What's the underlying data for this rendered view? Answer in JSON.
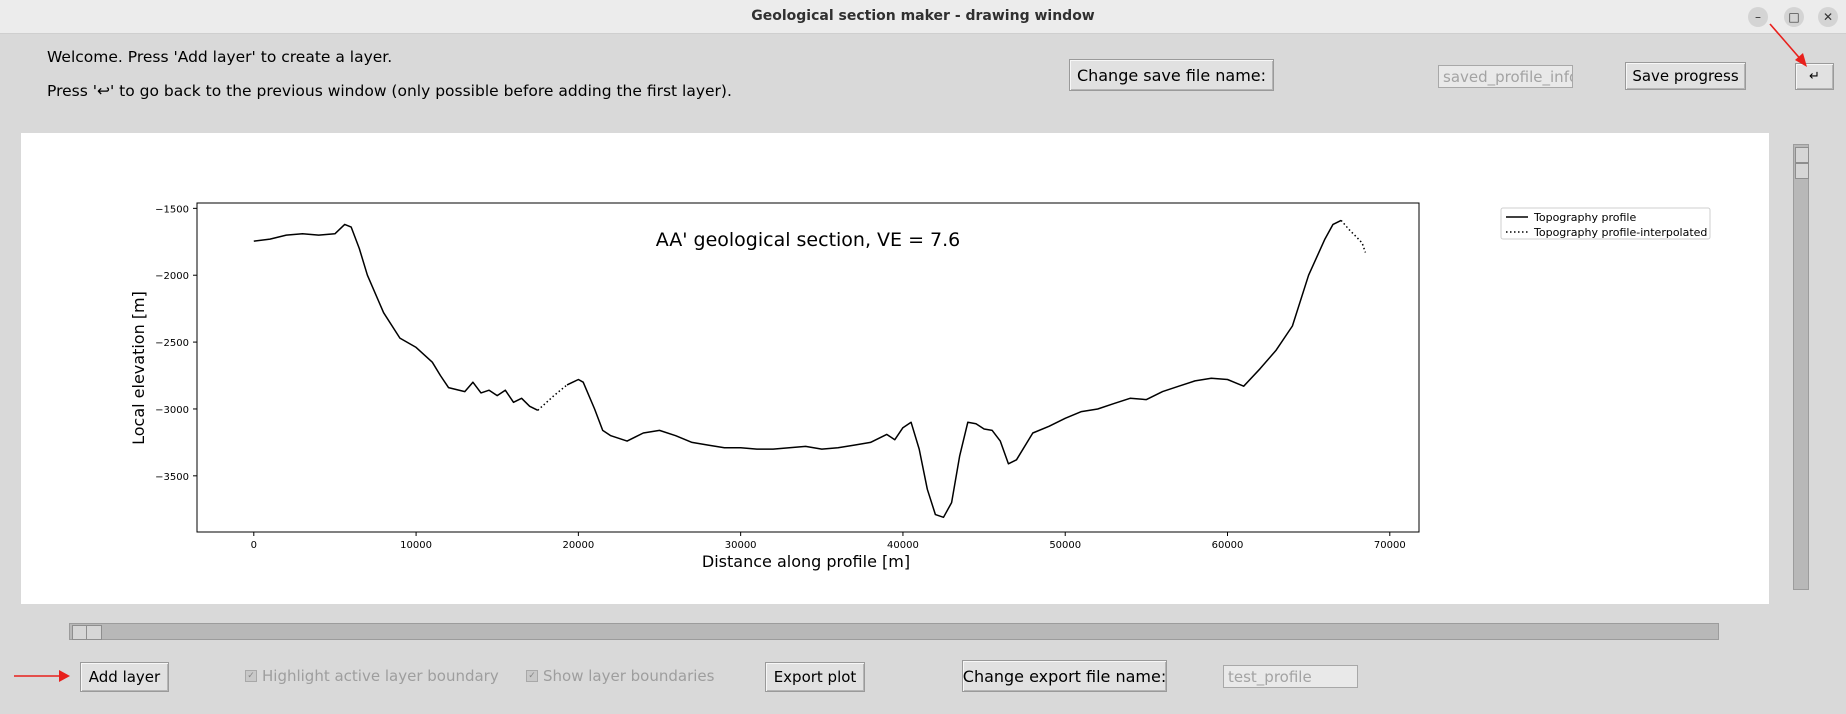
{
  "window": {
    "title": "Geological section maker - drawing window",
    "minimize_glyph": "–",
    "maximize_glyph": "□",
    "close_glyph": "✕"
  },
  "header": {
    "welcome_text": "Welcome. Press 'Add layer' to create a layer.",
    "back_hint_text": "Press '↩' to go back to the previous window (only possible before adding the first layer).",
    "change_save_name_label": "Change save file name:",
    "save_file_value": "saved_profile_info.t",
    "save_progress_label": "Save progress",
    "back_button_label": "↵"
  },
  "footer": {
    "add_layer_label": "Add layer",
    "highlight_label": "Highlight active layer boundary",
    "show_boundaries_label": "Show layer boundaries",
    "export_plot_label": "Export plot",
    "change_export_name_label": "Change export file name:",
    "export_file_value": "test_profile"
  },
  "colors": {
    "annotation_arrow": "#e8201c",
    "plot_line": "#000000"
  },
  "chart_data": {
    "type": "line",
    "title": "AA' geological section, VE = 7.6",
    "xlabel": "Distance along profile [m]",
    "ylabel": "Local elevation [m]",
    "xlim": [
      -3500,
      71800
    ],
    "ylim": [
      -3920,
      -1460
    ],
    "xticks": [
      0,
      10000,
      20000,
      30000,
      40000,
      50000,
      60000,
      70000
    ],
    "yticks": [
      -1500,
      -2000,
      -2500,
      -3000,
      -3500
    ],
    "grid": false,
    "legend_position": "top-right, outside plot area",
    "series": [
      {
        "name": "Topography profile",
        "style": "solid",
        "x": [
          0,
          1000,
          2000,
          3000,
          4000,
          5000,
          5600,
          6000,
          6500,
          7000,
          8000,
          9000,
          10000,
          11000,
          11500,
          12000,
          13000,
          13500,
          14000,
          14500,
          15000,
          15500,
          16000,
          16500,
          17000,
          17500
        ],
        "y": [
          -1745,
          -1730,
          -1700,
          -1690,
          -1700,
          -1690,
          -1620,
          -1640,
          -1800,
          -2000,
          -2280,
          -2470,
          -2540,
          -2650,
          -2750,
          -2840,
          -2870,
          -2800,
          -2880,
          -2860,
          -2900,
          -2860,
          -2950,
          -2920,
          -2980,
          -3010
        ]
      },
      {
        "name": "Topography profile-interpolated",
        "style": "dotted",
        "x": [
          17500,
          18500,
          19300
        ],
        "y": [
          -3010,
          -2900,
          -2820
        ]
      },
      {
        "name": "",
        "style": "solid",
        "x": [
          19300,
          20000,
          20300,
          21000,
          21500,
          22000,
          23000,
          24000,
          25000,
          26000,
          27000,
          28000,
          29000,
          30000,
          31000,
          32000,
          33000,
          34000,
          35000,
          36000,
          37000,
          38000,
          39000,
          39500,
          40000,
          40500,
          41000,
          41500,
          42000,
          42500,
          43000,
          43500,
          44000,
          44500,
          45000,
          45500,
          46000,
          46500,
          47000,
          48000,
          49000,
          50000,
          51000,
          52000,
          53000,
          54000,
          55000,
          56000,
          57000,
          58000,
          59000,
          60000,
          61000,
          62000,
          63000,
          64000,
          65000,
          66000,
          66500,
          67000
        ],
        "y": [
          -2820,
          -2780,
          -2800,
          -3000,
          -3160,
          -3200,
          -3240,
          -3180,
          -3160,
          -3200,
          -3250,
          -3270,
          -3290,
          -3290,
          -3300,
          -3300,
          -3290,
          -3280,
          -3300,
          -3290,
          -3270,
          -3250,
          -3190,
          -3230,
          -3140,
          -3100,
          -3300,
          -3600,
          -3790,
          -3810,
          -3700,
          -3350,
          -3100,
          -3110,
          -3150,
          -3160,
          -3240,
          -3410,
          -3380,
          -3180,
          -3130,
          -3070,
          -3020,
          -3000,
          -2960,
          -2920,
          -2930,
          -2870,
          -2830,
          -2790,
          -2770,
          -2780,
          -2830,
          -2700,
          -2560,
          -2380,
          -2000,
          -1730,
          -1620,
          -1590
        ]
      },
      {
        "name": "",
        "style": "dotted",
        "x": [
          67000,
          67500,
          68000,
          68300,
          68500
        ],
        "y": [
          -1590,
          -1660,
          -1720,
          -1760,
          -1830
        ]
      }
    ]
  }
}
